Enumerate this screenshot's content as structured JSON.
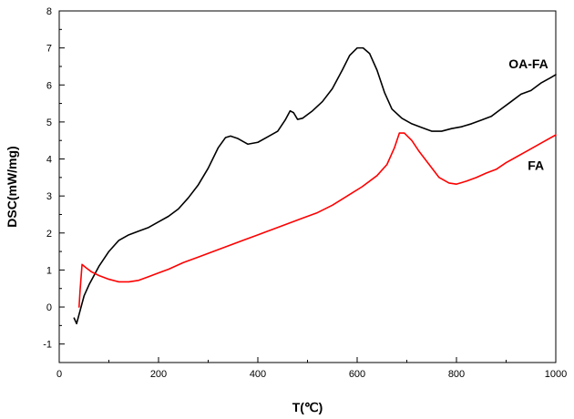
{
  "chart_data": {
    "type": "line",
    "xlabel": "T(℃)",
    "ylabel": "DSC(mW/mg)",
    "xlim": [
      0,
      1000
    ],
    "ylim": [
      -1.5,
      8
    ],
    "x_ticks": [
      0,
      200,
      400,
      600,
      800,
      1000
    ],
    "y_ticks": [
      -1,
      0,
      1,
      2,
      3,
      4,
      5,
      6,
      7,
      8
    ],
    "grid": false,
    "series": [
      {
        "name": "OA-FA",
        "color": "#000000",
        "points": [
          [
            30,
            -0.3
          ],
          [
            35,
            -0.45
          ],
          [
            40,
            -0.2
          ],
          [
            50,
            0.3
          ],
          [
            60,
            0.6
          ],
          [
            80,
            1.1
          ],
          [
            100,
            1.5
          ],
          [
            120,
            1.8
          ],
          [
            140,
            1.95
          ],
          [
            160,
            2.05
          ],
          [
            180,
            2.15
          ],
          [
            200,
            2.3
          ],
          [
            220,
            2.45
          ],
          [
            240,
            2.65
          ],
          [
            260,
            2.95
          ],
          [
            280,
            3.3
          ],
          [
            300,
            3.75
          ],
          [
            320,
            4.3
          ],
          [
            335,
            4.58
          ],
          [
            345,
            4.62
          ],
          [
            360,
            4.55
          ],
          [
            380,
            4.4
          ],
          [
            400,
            4.45
          ],
          [
            420,
            4.6
          ],
          [
            440,
            4.75
          ],
          [
            455,
            5.05
          ],
          [
            465,
            5.3
          ],
          [
            472,
            5.25
          ],
          [
            480,
            5.07
          ],
          [
            490,
            5.1
          ],
          [
            510,
            5.3
          ],
          [
            530,
            5.55
          ],
          [
            550,
            5.9
          ],
          [
            570,
            6.4
          ],
          [
            585,
            6.8
          ],
          [
            600,
            7.0
          ],
          [
            612,
            7.0
          ],
          [
            625,
            6.85
          ],
          [
            640,
            6.4
          ],
          [
            655,
            5.8
          ],
          [
            670,
            5.35
          ],
          [
            690,
            5.1
          ],
          [
            710,
            4.95
          ],
          [
            730,
            4.85
          ],
          [
            750,
            4.75
          ],
          [
            770,
            4.75
          ],
          [
            790,
            4.82
          ],
          [
            810,
            4.87
          ],
          [
            830,
            4.95
          ],
          [
            850,
            5.05
          ],
          [
            870,
            5.15
          ],
          [
            890,
            5.35
          ],
          [
            910,
            5.55
          ],
          [
            930,
            5.75
          ],
          [
            950,
            5.85
          ],
          [
            970,
            6.05
          ],
          [
            990,
            6.2
          ],
          [
            1000,
            6.28
          ]
        ]
      },
      {
        "name": "FA",
        "color": "#ff0000",
        "points": [
          [
            40,
            0.0
          ],
          [
            42,
            0.45
          ],
          [
            46,
            1.15
          ],
          [
            55,
            1.05
          ],
          [
            65,
            0.95
          ],
          [
            80,
            0.85
          ],
          [
            100,
            0.75
          ],
          [
            120,
            0.68
          ],
          [
            140,
            0.68
          ],
          [
            160,
            0.72
          ],
          [
            180,
            0.82
          ],
          [
            200,
            0.92
          ],
          [
            220,
            1.02
          ],
          [
            250,
            1.2
          ],
          [
            280,
            1.35
          ],
          [
            310,
            1.5
          ],
          [
            340,
            1.65
          ],
          [
            370,
            1.8
          ],
          [
            400,
            1.95
          ],
          [
            430,
            2.1
          ],
          [
            460,
            2.25
          ],
          [
            490,
            2.4
          ],
          [
            520,
            2.55
          ],
          [
            550,
            2.75
          ],
          [
            580,
            3.0
          ],
          [
            610,
            3.25
          ],
          [
            640,
            3.55
          ],
          [
            660,
            3.85
          ],
          [
            675,
            4.3
          ],
          [
            685,
            4.7
          ],
          [
            695,
            4.7
          ],
          [
            710,
            4.5
          ],
          [
            725,
            4.2
          ],
          [
            745,
            3.85
          ],
          [
            765,
            3.5
          ],
          [
            785,
            3.35
          ],
          [
            800,
            3.32
          ],
          [
            820,
            3.4
          ],
          [
            840,
            3.5
          ],
          [
            860,
            3.62
          ],
          [
            880,
            3.72
          ],
          [
            900,
            3.9
          ],
          [
            920,
            4.05
          ],
          [
            940,
            4.2
          ],
          [
            960,
            4.35
          ],
          [
            980,
            4.5
          ],
          [
            1000,
            4.65
          ]
        ]
      }
    ]
  }
}
